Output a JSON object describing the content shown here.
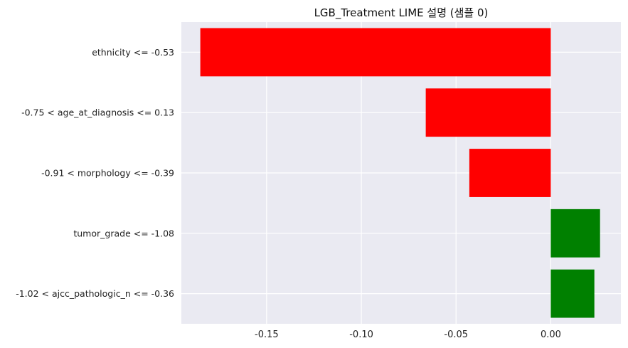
{
  "chart_data": {
    "type": "bar",
    "orientation": "horizontal",
    "title": "LGB_Treatment LIME 설명 (샘플 0)",
    "xlabel": "",
    "ylabel": "",
    "categories": [
      "ethnicity <= -0.53",
      "-0.75 < age_at_diagnosis <= 0.13",
      "-0.91 < morphology <= -0.39",
      "tumor_grade <= -1.08",
      "-1.02 < ajcc_pathologic_n <= -0.36"
    ],
    "values": [
      -0.185,
      -0.066,
      -0.043,
      0.026,
      0.023
    ],
    "xlim": [
      -0.195,
      0.037
    ],
    "xticks": [
      -0.15,
      -0.1,
      -0.05,
      0.0
    ],
    "xtick_labels": [
      "-0.15",
      "-0.10",
      "-0.05",
      "0.00"
    ],
    "grid": true,
    "legend": "none",
    "colors": {
      "negative": "#ff0000",
      "positive": "#008000",
      "plot_background": "#eaeaf2",
      "grid": "#ffffff"
    }
  }
}
